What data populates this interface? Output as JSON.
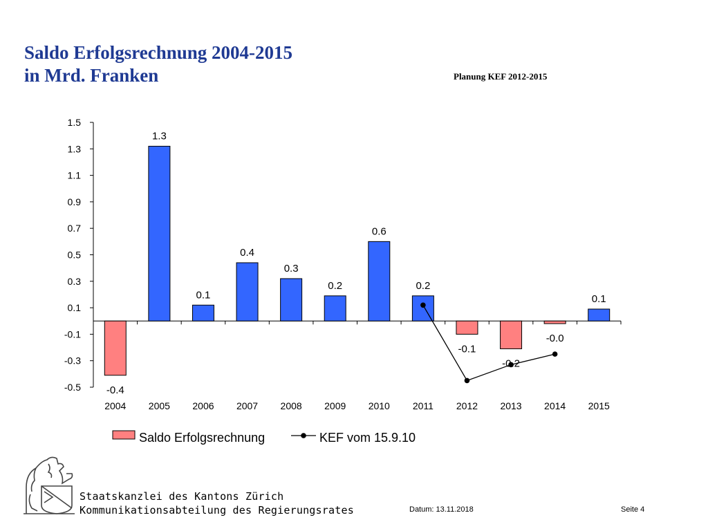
{
  "slide": {
    "title_line1": "Saldo Erfolgsrechnung 2004-2015",
    "title_line2": "in Mrd. Franken",
    "note": "Planung KEF 2012-2015",
    "org_line1": "Staatskanzlei des Kantons Zürich",
    "org_line2": "Kommunikationsabteilung des Regierungsrates",
    "date": "Datum: 13.11.2018",
    "page": "Seite 4"
  },
  "chart_data": {
    "type": "bar",
    "categories": [
      "2004",
      "2005",
      "2006",
      "2007",
      "2008",
      "2009",
      "2010",
      "2011",
      "2012",
      "2013",
      "2014",
      "2015"
    ],
    "series": [
      {
        "name": "Saldo Erfolgsrechnung",
        "type": "bar",
        "values": [
          -0.41,
          1.32,
          0.12,
          0.44,
          0.32,
          0.19,
          0.6,
          0.19,
          -0.1,
          -0.21,
          -0.02,
          0.09
        ],
        "labels": [
          "-0.4",
          "1.3",
          "0.1",
          "0.4",
          "0.3",
          "0.2",
          "0.6",
          "0.2",
          "-0.1",
          "-0.2",
          "-0.0",
          "0.1"
        ],
        "positive_color": "#3366ff",
        "negative_color": "#ff8080"
      },
      {
        "name": "KEF vom 15.9.10",
        "type": "line",
        "x": [
          "2011",
          "2012",
          "2013",
          "2014"
        ],
        "values": [
          0.12,
          -0.45,
          -0.33,
          -0.25
        ],
        "color": "#000000"
      }
    ],
    "yticks": [
      "1.5",
      "1.3",
      "1.1",
      "0.9",
      "0.7",
      "0.5",
      "0.3",
      "0.1",
      "-0.1",
      "-0.3",
      "-0.5"
    ],
    "ylim": [
      -0.5,
      1.5
    ],
    "grid": false,
    "legend_position": "bottom"
  }
}
